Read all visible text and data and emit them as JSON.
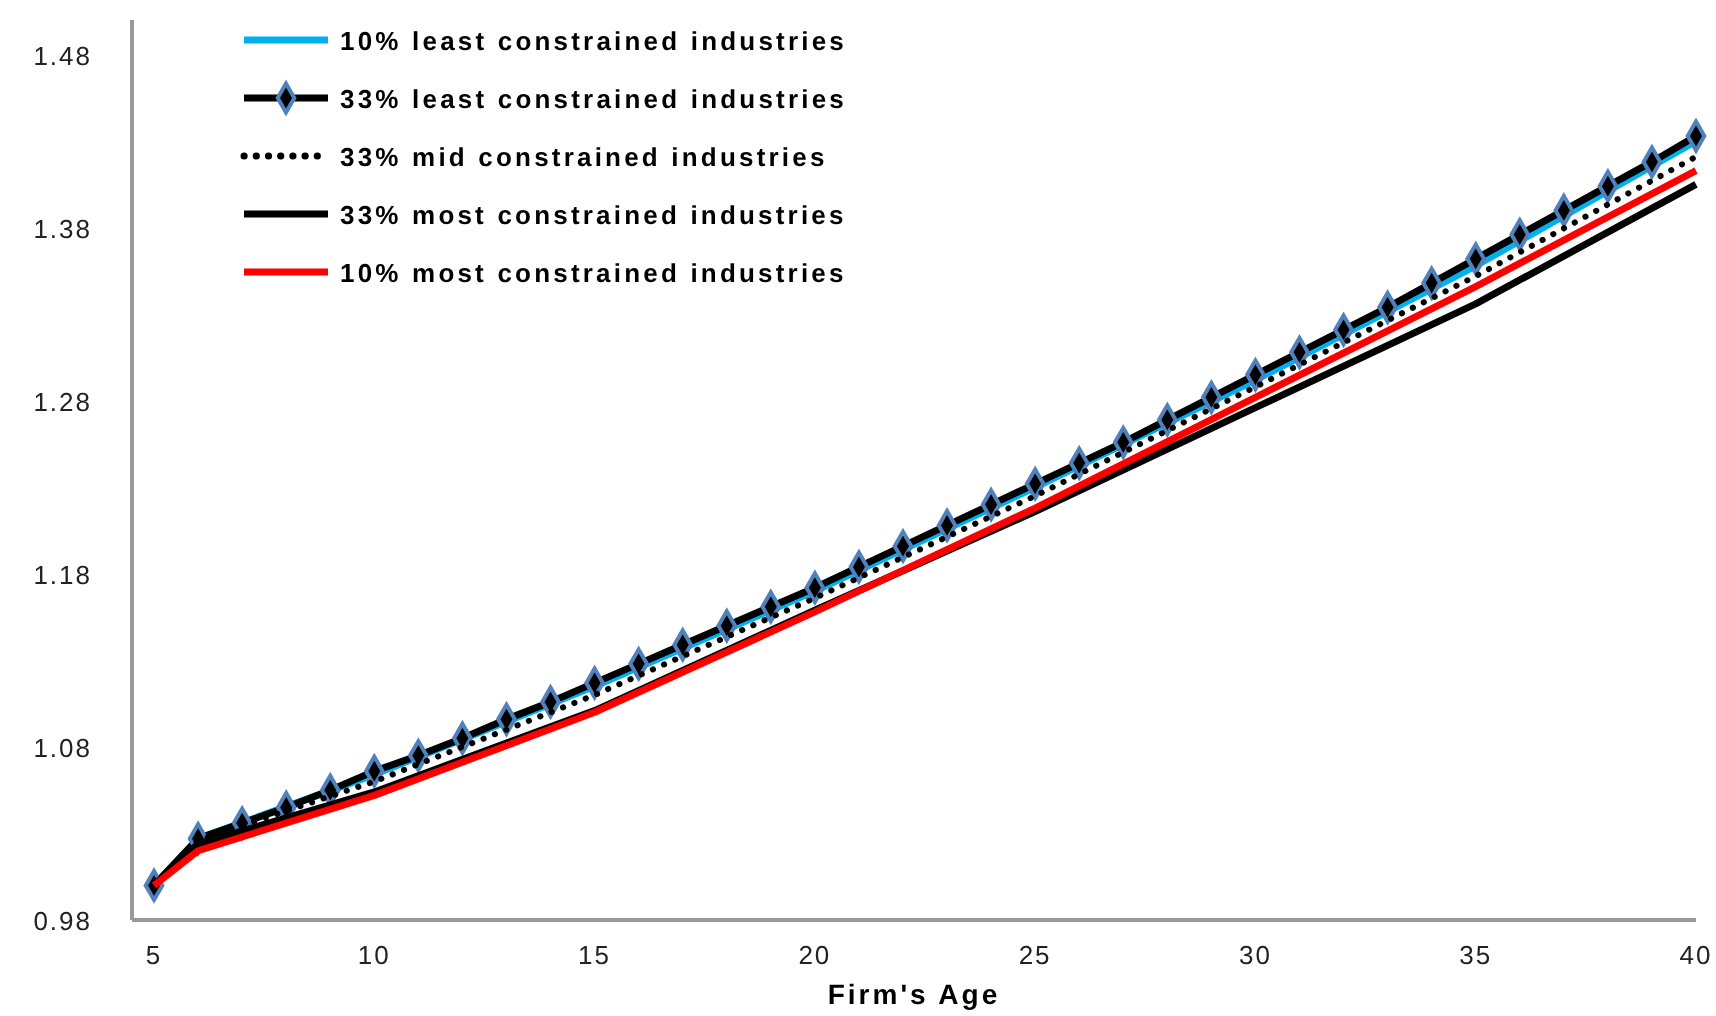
{
  "chart_data": {
    "type": "line",
    "xlabel": "Firm's Age",
    "xlim": [
      4.5,
      40
    ],
    "xticks": [
      5,
      10,
      15,
      20,
      25,
      30,
      35,
      40
    ],
    "ylim": [
      0.98,
      1.5
    ],
    "yticks": [
      0.98,
      1.08,
      1.18,
      1.28,
      1.38,
      1.48
    ],
    "grid": false,
    "legend": "top left",
    "series": [
      {
        "name": "10% least constrained industries",
        "color": "#00b0f0",
        "line_style": "solid",
        "marker": "none",
        "x": [
          5,
          6,
          10,
          15,
          20,
          25,
          30,
          35,
          40
        ],
        "values": [
          1.0,
          1.027,
          1.064,
          1.115,
          1.17,
          1.23,
          1.292,
          1.358,
          1.43
        ]
      },
      {
        "name": "33% least constrained industries",
        "color": "#000000",
        "line_style": "solid",
        "marker": "diamond",
        "x": [
          5,
          6,
          7,
          8,
          9,
          10,
          11,
          12,
          13,
          14,
          15,
          16,
          17,
          18,
          19,
          20,
          21,
          22,
          23,
          24,
          25,
          26,
          27,
          28,
          29,
          30,
          31,
          32,
          33,
          34,
          35,
          36,
          37,
          38,
          39,
          40
        ],
        "values": [
          1.0,
          1.027,
          1.036,
          1.045,
          1.055,
          1.066,
          1.075,
          1.085,
          1.096,
          1.106,
          1.117,
          1.128,
          1.139,
          1.15,
          1.161,
          1.172,
          1.184,
          1.196,
          1.208,
          1.22,
          1.232,
          1.244,
          1.256,
          1.269,
          1.282,
          1.295,
          1.308,
          1.321,
          1.334,
          1.348,
          1.362,
          1.376,
          1.39,
          1.404,
          1.418,
          1.433
        ]
      },
      {
        "name": "33% mid constrained industries",
        "color": "#000000",
        "line_style": "dotted",
        "marker": "none",
        "x": [
          5,
          6,
          10,
          15,
          20,
          25,
          30,
          35,
          40
        ],
        "values": [
          1.0,
          1.026,
          1.06,
          1.11,
          1.166,
          1.225,
          1.288,
          1.352,
          1.421
        ]
      },
      {
        "name": "33% most constrained industries",
        "color": "#000000",
        "line_style": "solid",
        "marker": "none",
        "x": [
          5,
          6,
          10,
          15,
          20,
          25,
          30,
          35,
          40
        ],
        "values": [
          1.0,
          1.024,
          1.054,
          1.101,
          1.159,
          1.216,
          1.276,
          1.336,
          1.405
        ]
      },
      {
        "name": "10% most constrained industries",
        "color": "#ff0000",
        "line_style": "solid",
        "marker": "none",
        "x": [
          5,
          6,
          10,
          15,
          20,
          25,
          30,
          35,
          40
        ],
        "values": [
          1.0,
          1.02,
          1.052,
          1.1,
          1.158,
          1.218,
          1.282,
          1.346,
          1.413
        ]
      }
    ]
  }
}
